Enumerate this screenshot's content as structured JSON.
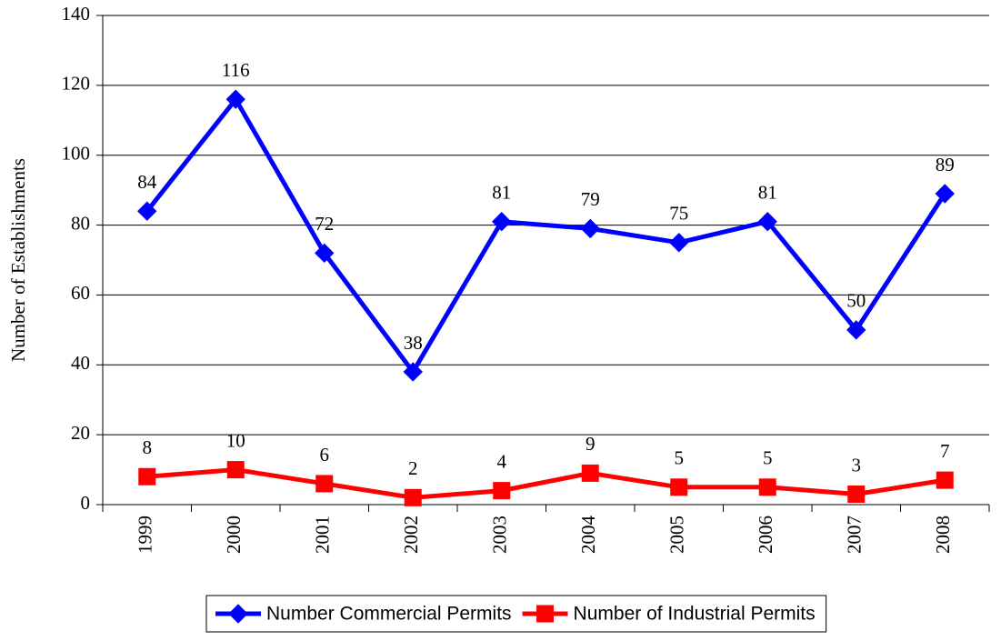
{
  "chart_data": {
    "type": "line",
    "y_label": "Number of Establishments",
    "categories": [
      "1999",
      "2000",
      "2001",
      "2002",
      "2003",
      "2004",
      "2005",
      "2006",
      "2007",
      "2008"
    ],
    "series": [
      {
        "name": "Number Commercial Permits",
        "color": "#0000ff",
        "marker": "diamond",
        "values": [
          84,
          116,
          72,
          38,
          81,
          79,
          75,
          81,
          50,
          89
        ]
      },
      {
        "name": "Number of Industrial Permits",
        "color": "#ff0000",
        "marker": "square",
        "values": [
          8,
          10,
          6,
          2,
          4,
          9,
          5,
          5,
          3,
          7
        ]
      }
    ],
    "ylim": [
      0,
      140
    ],
    "yticks": [
      0,
      20,
      40,
      60,
      80,
      100,
      120,
      140
    ],
    "grid": true,
    "legend": "bottom"
  }
}
